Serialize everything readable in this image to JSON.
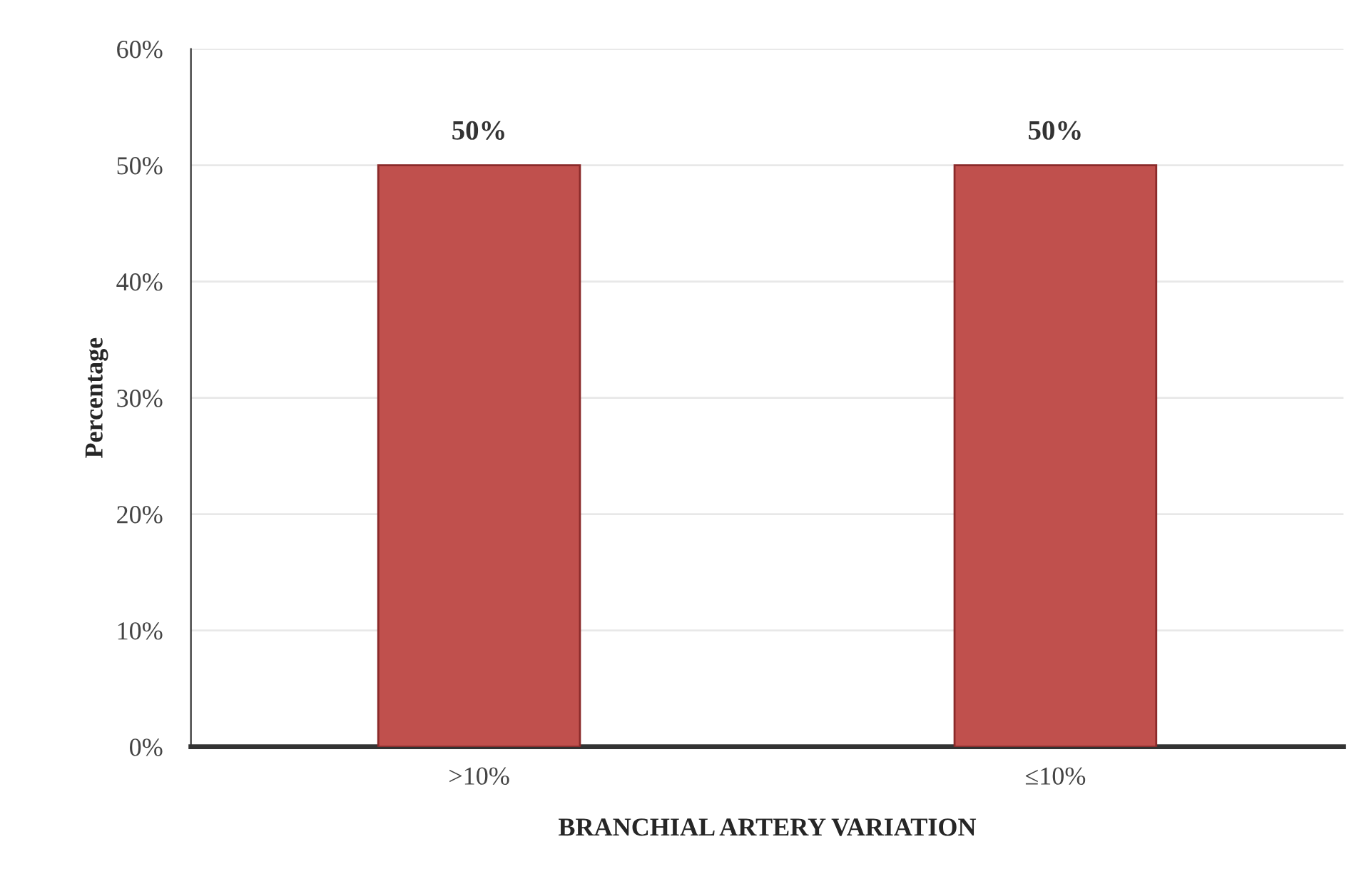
{
  "chart_data": {
    "type": "bar",
    "xlabel": "BRANCHIAL ARTERY VARIATION",
    "ylabel": "Percentage",
    "categories": [
      ">10%",
      "≤10%"
    ],
    "values": [
      50,
      50
    ],
    "color": "#c0504d",
    "value_labels": [
      "50%",
      "50%"
    ],
    "ylim": [
      0,
      60
    ],
    "yticks": [
      {
        "value": 0,
        "label": "0%"
      },
      {
        "value": 10,
        "label": "10%"
      },
      {
        "value": 20,
        "label": "20%"
      },
      {
        "value": 30,
        "label": "30%"
      },
      {
        "value": 40,
        "label": "40%"
      },
      {
        "value": 50,
        "label": "50%"
      },
      {
        "value": 60,
        "label": "60%"
      }
    ],
    "grid": "y",
    "legend": false
  }
}
